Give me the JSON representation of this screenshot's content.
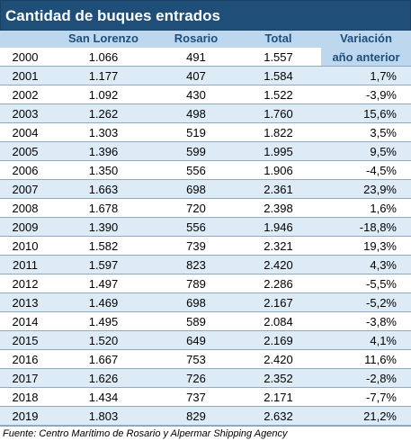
{
  "title": "Cantidad de buques entrados",
  "headers": {
    "san_lorenzo": "San Lorenzo",
    "rosario": "Rosario",
    "total": "Total",
    "variacion_line1": "Variación",
    "variacion_line2": "año anterior"
  },
  "rows": [
    {
      "year": "2000",
      "san_lorenzo": "1.066",
      "rosario": "491",
      "total": "1.557",
      "variacion": ""
    },
    {
      "year": "2001",
      "san_lorenzo": "1.177",
      "rosario": "407",
      "total": "1.584",
      "variacion": "1,7%"
    },
    {
      "year": "2002",
      "san_lorenzo": "1.092",
      "rosario": "430",
      "total": "1.522",
      "variacion": "-3,9%"
    },
    {
      "year": "2003",
      "san_lorenzo": "1.262",
      "rosario": "498",
      "total": "1.760",
      "variacion": "15,6%"
    },
    {
      "year": "2004",
      "san_lorenzo": "1.303",
      "rosario": "519",
      "total": "1.822",
      "variacion": "3,5%"
    },
    {
      "year": "2005",
      "san_lorenzo": "1.396",
      "rosario": "599",
      "total": "1.995",
      "variacion": "9,5%"
    },
    {
      "year": "2006",
      "san_lorenzo": "1.350",
      "rosario": "556",
      "total": "1.906",
      "variacion": "-4,5%"
    },
    {
      "year": "2007",
      "san_lorenzo": "1.663",
      "rosario": "698",
      "total": "2.361",
      "variacion": "23,9%"
    },
    {
      "year": "2008",
      "san_lorenzo": "1.678",
      "rosario": "720",
      "total": "2.398",
      "variacion": "1,6%"
    },
    {
      "year": "2009",
      "san_lorenzo": "1.390",
      "rosario": "556",
      "total": "1.946",
      "variacion": "-18,8%"
    },
    {
      "year": "2010",
      "san_lorenzo": "1.582",
      "rosario": "739",
      "total": "2.321",
      "variacion": "19,3%"
    },
    {
      "year": "2011",
      "san_lorenzo": "1.597",
      "rosario": "823",
      "total": "2.420",
      "variacion": "4,3%"
    },
    {
      "year": "2012",
      "san_lorenzo": "1.497",
      "rosario": "789",
      "total": "2.286",
      "variacion": "-5,5%"
    },
    {
      "year": "2013",
      "san_lorenzo": "1.469",
      "rosario": "698",
      "total": "2.167",
      "variacion": "-5,2%"
    },
    {
      "year": "2014",
      "san_lorenzo": "1.495",
      "rosario": "589",
      "total": "2.084",
      "variacion": "-3,8%"
    },
    {
      "year": "2015",
      "san_lorenzo": "1.520",
      "rosario": "649",
      "total": "2.169",
      "variacion": "4,1%"
    },
    {
      "year": "2016",
      "san_lorenzo": "1.667",
      "rosario": "753",
      "total": "2.420",
      "variacion": "11,6%"
    },
    {
      "year": "2017",
      "san_lorenzo": "1.626",
      "rosario": "726",
      "total": "2.352",
      "variacion": "-2,8%"
    },
    {
      "year": "2018",
      "san_lorenzo": "1.434",
      "rosario": "737",
      "total": "2.171",
      "variacion": "-7,7%"
    },
    {
      "year": "2019",
      "san_lorenzo": "1.803",
      "rosario": "829",
      "total": "2.632",
      "variacion": "21,2%"
    }
  ],
  "source": "Fuente: Centro Marítimo de Rosario y Alpermar Shipping Agency",
  "colors": {
    "title_bg": "#1f4e79",
    "header_bg": "#bdd7ee",
    "header_text": "#1f4e79",
    "stripe_bg": "#ddebf7"
  }
}
